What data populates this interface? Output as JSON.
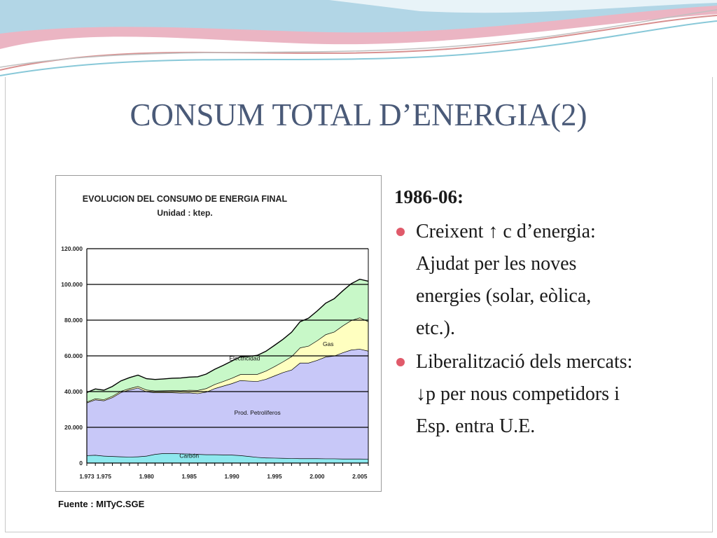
{
  "slide": {
    "title": "CONSUM TOTAL D’ENERGIA(2)",
    "period_heading": "1986-06:",
    "bullets": [
      {
        "lines": [
          "Creixent ↑ c d’energia:",
          "Ajudat per les noves",
          "energies (solar, eòlica,",
          "etc.)."
        ]
      },
      {
        "lines": [
          "Liberalització dels mercats:",
          "↓p per nous competidors i",
          "Esp. entra U.E."
        ]
      }
    ],
    "source_note": "Fuente : MITyC.SGE"
  },
  "colors": {
    "title": "#4a5a78",
    "bullet": "#e05a6a",
    "carbon": "#8ee8ee",
    "petroliferos": "#c8c8f8",
    "gas": "#ffffc0",
    "electricidad": "#c8f8c8",
    "wave_pink": "#e8a0b0",
    "wave_blue": "#8fd4e8"
  },
  "chart_data": {
    "type": "area",
    "title": "EVOLUCION DEL CONSUMO DE ENERGIA FINAL",
    "subtitle": "Unidad : ktep.",
    "stacked": true,
    "grid": true,
    "ylim": [
      0,
      120000
    ],
    "y_ticks": [
      "0",
      "20.000",
      "40.000",
      "60.000",
      "80.000",
      "100.000",
      "120.000"
    ],
    "x_ticks": [
      "1.973",
      "1.975",
      "1.980",
      "1.985",
      "1.990",
      "1.995",
      "2.000",
      "2.005"
    ],
    "x": [
      1973,
      1974,
      1975,
      1976,
      1977,
      1978,
      1979,
      1980,
      1981,
      1982,
      1983,
      1984,
      1985,
      1986,
      1987,
      1988,
      1989,
      1990,
      1991,
      1992,
      1993,
      1994,
      1995,
      1996,
      1997,
      1998,
      1999,
      2000,
      2001,
      2002,
      2003,
      2004,
      2005,
      2006
    ],
    "series": [
      {
        "name": "Carbón",
        "key": "carbon",
        "values": [
          4300,
          4500,
          4000,
          3800,
          3600,
          3500,
          3600,
          4000,
          5000,
          5500,
          5500,
          5300,
          5200,
          5000,
          4800,
          4800,
          4700,
          4600,
          4300,
          3800,
          3300,
          3000,
          2900,
          2800,
          2700,
          2600,
          2600,
          2600,
          2500,
          2500,
          2400,
          2400,
          2400,
          2300
        ]
      },
      {
        "name": "Prod. Petrolíferos",
        "key": "petroliferos",
        "values": [
          29500,
          31000,
          31000,
          33000,
          36000,
          37500,
          38500,
          36000,
          34500,
          34000,
          34000,
          34000,
          34200,
          34000,
          35000,
          37000,
          38500,
          40000,
          42000,
          42200,
          42500,
          44000,
          46000,
          48000,
          49500,
          53500,
          53500,
          55000,
          57000,
          57500,
          59500,
          61000,
          61500,
          60500
        ]
      },
      {
        "name": "Gas",
        "key": "gas",
        "values": [
          500,
          600,
          600,
          700,
          700,
          800,
          900,
          1000,
          1000,
          1100,
          1200,
          1300,
          1500,
          1800,
          2000,
          2300,
          2600,
          3000,
          3400,
          3700,
          4000,
          4600,
          5200,
          6000,
          7500,
          8500,
          9500,
          11000,
          12500,
          13500,
          15000,
          16500,
          17500,
          16500
        ]
      },
      {
        "name": "Electricidad",
        "key": "electricidad",
        "values": [
          5200,
          5400,
          5200,
          5400,
          5700,
          6000,
          6200,
          6200,
          6300,
          6500,
          6800,
          7000,
          7200,
          7500,
          8000,
          8400,
          8900,
          9500,
          9800,
          10000,
          10500,
          11000,
          11800,
          12500,
          13500,
          14500,
          15500,
          16500,
          17500,
          18500,
          19500,
          20500,
          21500,
          22500
        ]
      }
    ],
    "annotations": [
      "Electricidad",
      "Gas",
      "Prod. Petrolíferos",
      "Carbón"
    ]
  }
}
